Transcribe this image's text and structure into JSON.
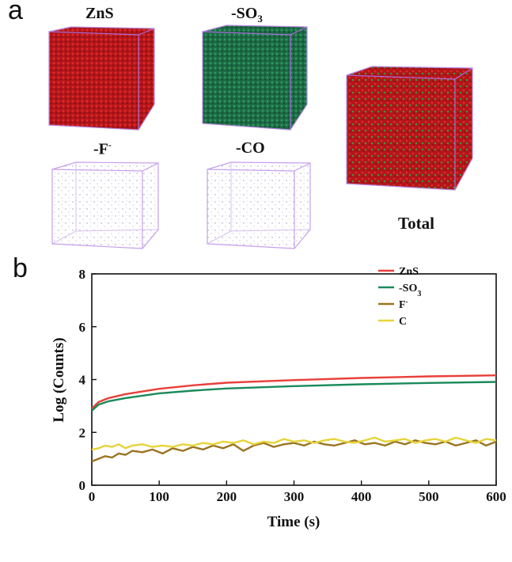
{
  "panel_a": {
    "letter": "a",
    "cubes": [
      {
        "label": "ZnS",
        "color": "#c8191b"
      },
      {
        "label": "-SO",
        "sub": "3",
        "color": "#1f7a4a"
      },
      {
        "label": "-F",
        "sup": "-",
        "color": "#8a86c8"
      },
      {
        "label": "-CO",
        "color": "#8a86c8"
      },
      {
        "label": "Total",
        "color": "#c8191b",
        "color2": "#2f8a3a"
      }
    ]
  },
  "panel_b": {
    "letter": "b"
  },
  "chart_data": {
    "type": "line",
    "title": "",
    "xlabel": "Time (s)",
    "ylabel": "Log (Counts)",
    "xlim": [
      0,
      600
    ],
    "ylim": [
      0,
      8
    ],
    "x_ticks": [
      0,
      100,
      200,
      300,
      400,
      500,
      600
    ],
    "y_ticks": [
      0,
      2,
      4,
      6,
      8
    ],
    "legend_position": "top-right",
    "series": [
      {
        "name": "ZnS",
        "color": "#e8403a",
        "x": [
          0,
          10,
          25,
          50,
          100,
          150,
          200,
          300,
          400,
          500,
          600
        ],
        "y": [
          2.9,
          3.15,
          3.3,
          3.45,
          3.65,
          3.78,
          3.88,
          3.98,
          4.06,
          4.12,
          4.16
        ]
      },
      {
        "name": "-SO",
        "name_sub": "3",
        "color": "#1a8a5a",
        "x": [
          0,
          10,
          25,
          50,
          100,
          150,
          200,
          300,
          400,
          500,
          600
        ],
        "y": [
          2.82,
          3.05,
          3.18,
          3.3,
          3.48,
          3.58,
          3.66,
          3.75,
          3.82,
          3.87,
          3.91
        ]
      },
      {
        "name": "F",
        "name_sup": "-",
        "color": "#9a7420",
        "x": [
          0,
          10,
          20,
          30,
          40,
          50,
          60,
          75,
          90,
          105,
          120,
          135,
          150,
          165,
          180,
          195,
          210,
          225,
          240,
          255,
          270,
          285,
          300,
          315,
          330,
          345,
          360,
          375,
          390,
          405,
          420,
          435,
          450,
          465,
          480,
          495,
          510,
          525,
          540,
          555,
          570,
          585,
          600
        ],
        "y": [
          0.9,
          1.0,
          1.1,
          1.05,
          1.2,
          1.15,
          1.3,
          1.25,
          1.35,
          1.2,
          1.4,
          1.3,
          1.45,
          1.35,
          1.5,
          1.4,
          1.55,
          1.3,
          1.5,
          1.6,
          1.45,
          1.55,
          1.6,
          1.5,
          1.65,
          1.55,
          1.5,
          1.6,
          1.7,
          1.55,
          1.6,
          1.5,
          1.65,
          1.55,
          1.7,
          1.6,
          1.55,
          1.65,
          1.5,
          1.6,
          1.7,
          1.5,
          1.65
        ]
      },
      {
        "name": "C",
        "color": "#e6d43a",
        "x": [
          0,
          10,
          20,
          30,
          40,
          50,
          60,
          75,
          90,
          105,
          120,
          135,
          150,
          165,
          180,
          195,
          210,
          225,
          240,
          255,
          270,
          285,
          300,
          315,
          330,
          345,
          360,
          375,
          390,
          405,
          420,
          435,
          450,
          465,
          480,
          495,
          510,
          525,
          540,
          555,
          570,
          585,
          600
        ],
        "y": [
          1.35,
          1.4,
          1.5,
          1.45,
          1.55,
          1.4,
          1.5,
          1.55,
          1.45,
          1.5,
          1.45,
          1.55,
          1.5,
          1.6,
          1.55,
          1.65,
          1.6,
          1.7,
          1.55,
          1.65,
          1.6,
          1.75,
          1.65,
          1.7,
          1.6,
          1.7,
          1.75,
          1.65,
          1.6,
          1.7,
          1.8,
          1.65,
          1.7,
          1.75,
          1.6,
          1.7,
          1.75,
          1.65,
          1.8,
          1.7,
          1.6,
          1.75,
          1.7
        ]
      }
    ]
  }
}
